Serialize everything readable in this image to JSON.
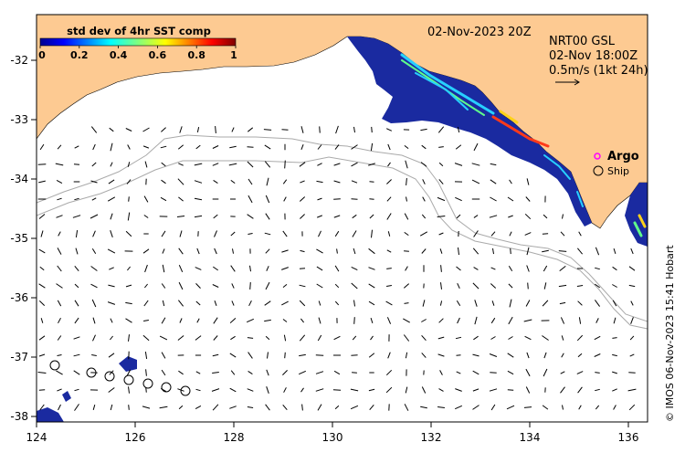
{
  "map": {
    "date_label": "02-Nov-2023 20Z",
    "product_label": "NRT00 GSL",
    "vector_time": "02-Nov 18:00Z",
    "vector_scale_label": "0.5m/s (1kt 24h)",
    "credit": "© IMOS 06-Nov-2023 15:41 Hobart",
    "colorbar": {
      "title": "std dev of 4hr SST comp",
      "tick_labels": [
        "0",
        "0.2",
        "0.4",
        "0.6",
        "0.8",
        "1"
      ],
      "min": 0,
      "max": 1
    },
    "legend": {
      "argo_label": "Argo",
      "ship_label": "Ship"
    },
    "axes": {
      "lon_range": [
        124,
        136.5
      ],
      "lat_range": [
        -38.1,
        -31.5
      ],
      "lon_ticks": [
        "124",
        "126",
        "128",
        "130",
        "132",
        "134",
        "136"
      ],
      "lat_ticks": [
        "-32",
        "-33",
        "-34",
        "-35",
        "-36",
        "-37",
        "-38"
      ]
    },
    "colors": {
      "land": "#fdca92",
      "sst_low": "#1a2aa0",
      "sst_high": "#d01010",
      "bathymetry": "#aaaaaa",
      "argo_marker": "#ff00ff"
    }
  }
}
